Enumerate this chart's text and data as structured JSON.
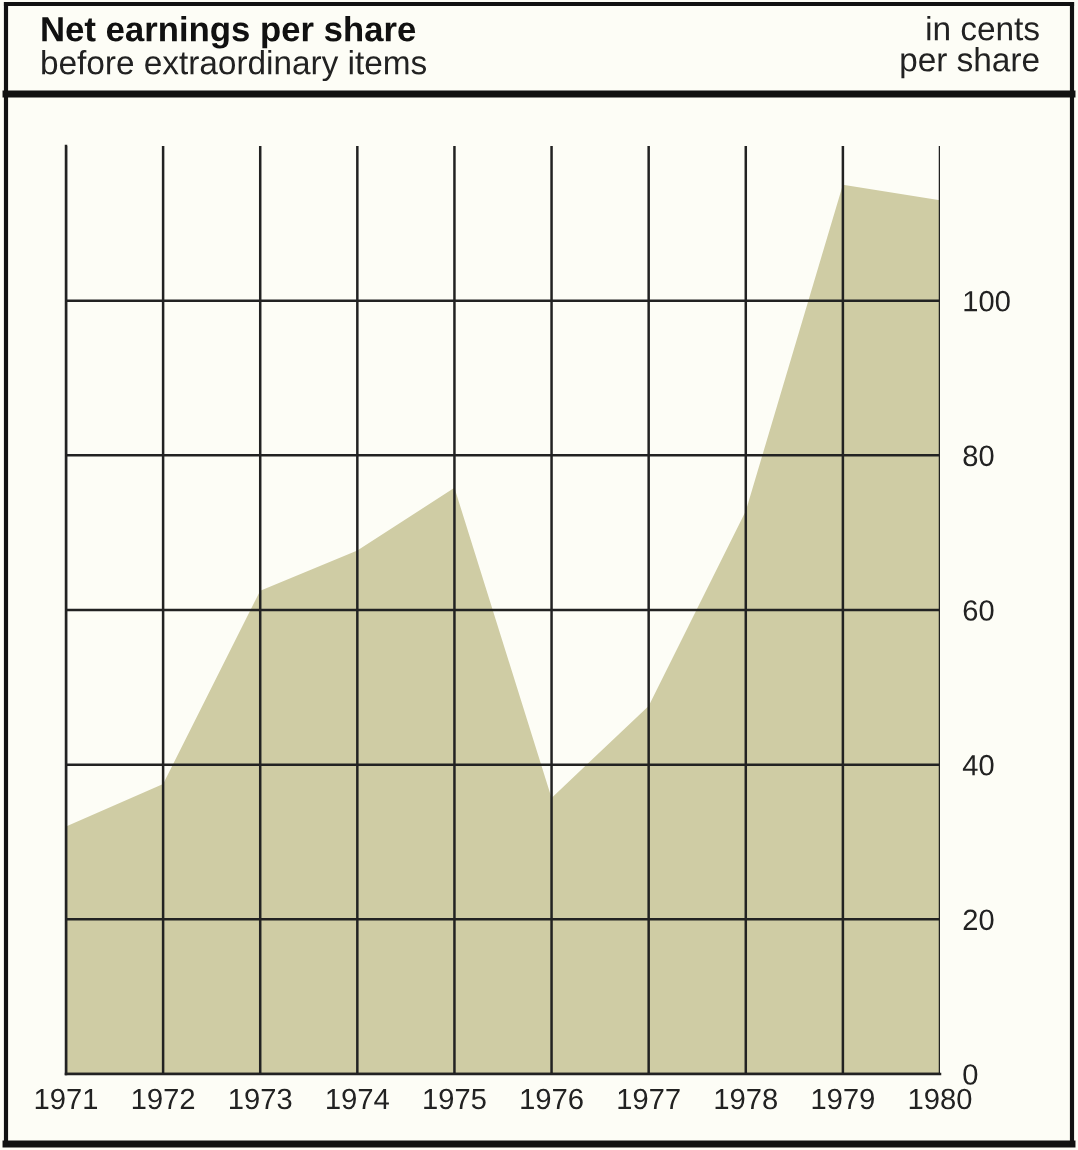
{
  "chart_data": {
    "type": "area",
    "title": "Net earnings per share",
    "subtitle": "before extraordinary items",
    "ylabel": "in cents\nper share",
    "x": [
      1971,
      1972,
      1973,
      1974,
      1975,
      1976,
      1977,
      1978,
      1979,
      1980
    ],
    "series": [
      {
        "color": "#cfcca4",
        "values": [
          32,
          37.5,
          62.5,
          67.7,
          75.8,
          35.7,
          47.6,
          72.8,
          115,
          113
        ]
      }
    ],
    "xlim": [
      1971,
      1980
    ],
    "xticks": [
      1971,
      1972,
      1973,
      1974,
      1975,
      1976,
      1977,
      1978,
      1979,
      1980
    ],
    "ylim": [
      0,
      120
    ],
    "yticks": [
      0,
      20,
      40,
      60,
      80,
      100
    ],
    "grid": true
  }
}
